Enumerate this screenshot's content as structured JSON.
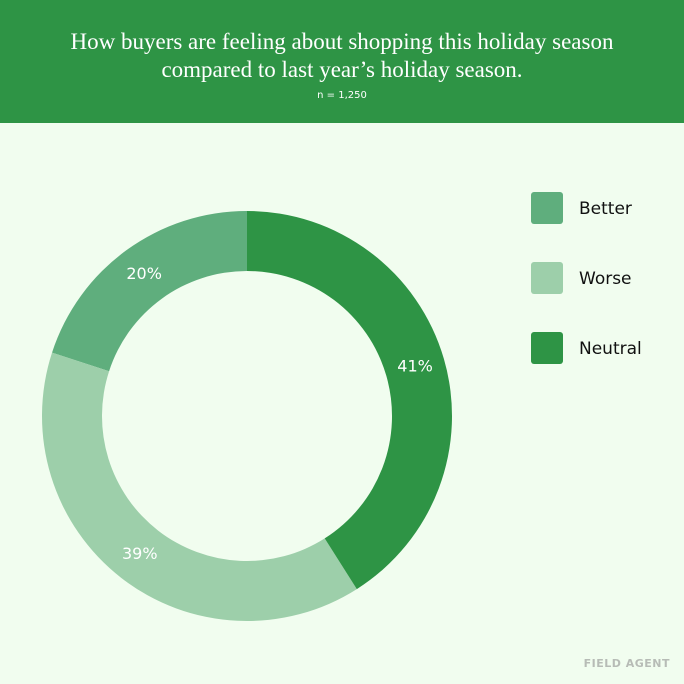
{
  "chart_data": {
    "type": "donut",
    "title": "How buyers are feeling about shopping this holiday season compared to last year’s holiday season.",
    "subtitle": "n = 1,250",
    "categories": [
      "Better",
      "Worse",
      "Neutral"
    ],
    "values": [
      20,
      39,
      41
    ],
    "value_labels": [
      "20%",
      "39%",
      "41%"
    ],
    "colors": [
      "#5fae7d",
      "#9dcfaa",
      "#2e9445"
    ],
    "legend": "top-right"
  },
  "brand": "FIELD AGENT"
}
